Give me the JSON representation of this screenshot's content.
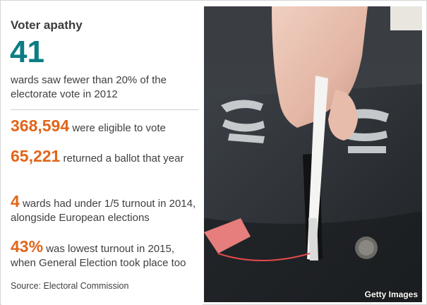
{
  "title": "Voter apathy",
  "headline": {
    "number": "41",
    "text": "wards saw fewer than 20% of the electorate vote in 2012"
  },
  "stats": [
    {
      "number": "368,594",
      "text": "were eligible to vote"
    },
    {
      "number": "65,221",
      "text": "returned a ballot that year"
    },
    {
      "number": "4",
      "text": "wards had under 1/5 turnout in 2014, alongside European elections"
    },
    {
      "number": "43%",
      "text": "was lowest turnout in 2015, when General Election took place too"
    }
  ],
  "source": "Source: Electoral Commission",
  "photo": {
    "credit": "Getty Images",
    "stencil_text": "SK"
  },
  "colors": {
    "headline_number": "#0b7d82",
    "stat_number": "#e0661a",
    "body_text": "#404040"
  }
}
